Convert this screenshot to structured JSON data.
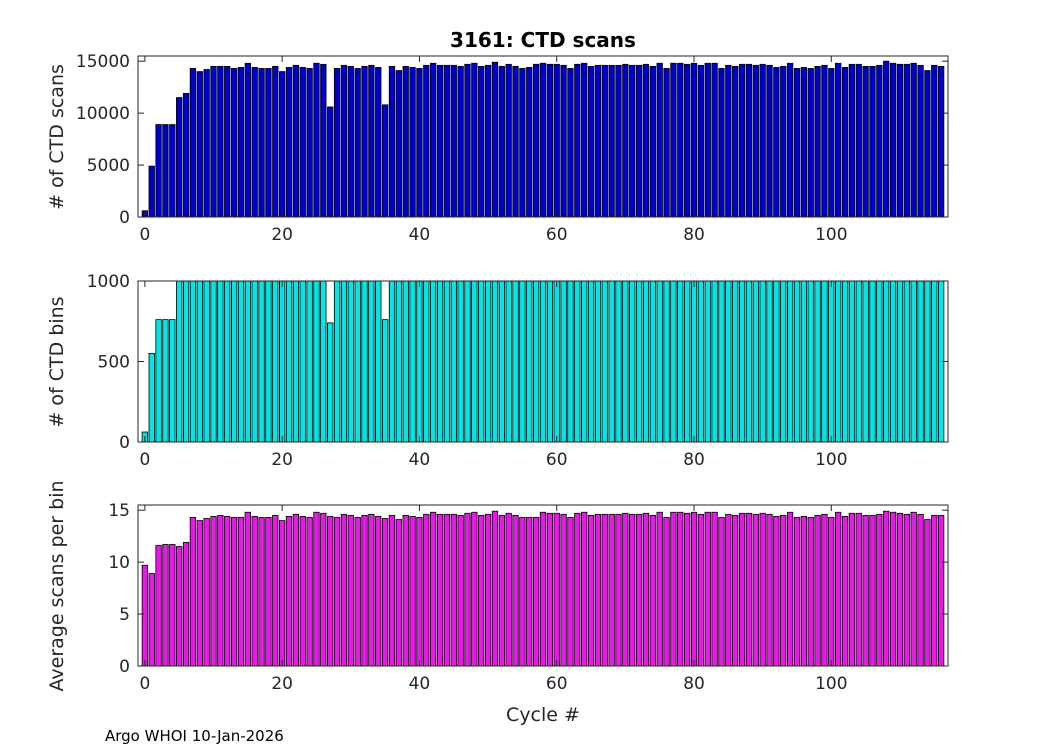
{
  "figure": {
    "footer": "Argo WHOI 10-Jan-2026"
  },
  "chart_data": [
    {
      "type": "bar",
      "title": "3161: CTD scans",
      "xlabel": "",
      "ylabel": "# of CTD scans",
      "xlim": [
        -1,
        117
      ],
      "ylim": [
        0,
        15500
      ],
      "xticks": [
        0,
        20,
        40,
        60,
        80,
        100
      ],
      "yticks": [
        0,
        5000,
        10000,
        15000
      ],
      "bar_color": "#0000cc",
      "x": [
        0,
        1,
        2,
        3,
        4,
        5,
        6,
        7,
        8,
        9,
        10,
        11,
        12,
        13,
        14,
        15,
        16,
        17,
        18,
        19,
        20,
        21,
        22,
        23,
        24,
        25,
        26,
        27,
        28,
        29,
        30,
        31,
        32,
        33,
        34,
        35,
        36,
        37,
        38,
        39,
        40,
        41,
        42,
        43,
        44,
        45,
        46,
        47,
        48,
        49,
        50,
        51,
        52,
        53,
        54,
        55,
        56,
        57,
        58,
        59,
        60,
        61,
        62,
        63,
        64,
        65,
        66,
        67,
        68,
        69,
        70,
        71,
        72,
        73,
        74,
        75,
        76,
        77,
        78,
        79,
        80,
        81,
        82,
        83,
        84,
        85,
        86,
        87,
        88,
        89,
        90,
        91,
        92,
        93,
        94,
        95,
        96,
        97,
        98,
        99,
        100,
        101,
        102,
        103,
        104,
        105,
        106,
        107,
        108,
        109,
        110,
        111,
        112,
        113,
        114,
        115,
        116
      ],
      "values": [
        600,
        4900,
        8900,
        8900,
        8900,
        11500,
        11900,
        14300,
        14000,
        14200,
        14500,
        14500,
        14500,
        14300,
        14400,
        14800,
        14400,
        14300,
        14300,
        14500,
        14000,
        14400,
        14600,
        14400,
        14300,
        14800,
        14700,
        10600,
        14300,
        14600,
        14500,
        14300,
        14500,
        14600,
        14400,
        10800,
        14500,
        14100,
        14500,
        14400,
        14300,
        14600,
        14800,
        14600,
        14600,
        14600,
        14500,
        14700,
        14800,
        14500,
        14600,
        14900,
        14500,
        14700,
        14500,
        14300,
        14400,
        14700,
        14800,
        14700,
        14700,
        14600,
        14300,
        14700,
        14800,
        14500,
        14600,
        14600,
        14600,
        14600,
        14700,
        14600,
        14600,
        14700,
        14500,
        14800,
        14300,
        14800,
        14800,
        14700,
        14800,
        14600,
        14800,
        14800,
        14300,
        14600,
        14500,
        14700,
        14700,
        14600,
        14700,
        14600,
        14400,
        14500,
        14800,
        14300,
        14400,
        14300,
        14500,
        14600,
        14300,
        14800,
        14400,
        14700,
        14700,
        14500,
        14500,
        14600,
        15000,
        14800,
        14700,
        14700,
        14800,
        14600,
        14100,
        14600,
        14500
      ]
    },
    {
      "type": "bar",
      "title": "",
      "xlabel": "",
      "ylabel": "# of CTD bins",
      "xlim": [
        -1,
        117
      ],
      "ylim": [
        0,
        1000
      ],
      "xticks": [
        0,
        20,
        40,
        60,
        80,
        100
      ],
      "yticks": [
        0,
        500,
        1000
      ],
      "bar_color": "#00e5e5",
      "x": [
        0,
        1,
        2,
        3,
        4,
        5,
        6,
        7,
        8,
        9,
        10,
        11,
        12,
        13,
        14,
        15,
        16,
        17,
        18,
        19,
        20,
        21,
        22,
        23,
        24,
        25,
        26,
        27,
        28,
        29,
        30,
        31,
        32,
        33,
        34,
        35,
        36,
        37,
        38,
        39,
        40,
        41,
        42,
        43,
        44,
        45,
        46,
        47,
        48,
        49,
        50,
        51,
        52,
        53,
        54,
        55,
        56,
        57,
        58,
        59,
        60,
        61,
        62,
        63,
        64,
        65,
        66,
        67,
        68,
        69,
        70,
        71,
        72,
        73,
        74,
        75,
        76,
        77,
        78,
        79,
        80,
        81,
        82,
        83,
        84,
        85,
        86,
        87,
        88,
        89,
        90,
        91,
        92,
        93,
        94,
        95,
        96,
        97,
        98,
        99,
        100,
        101,
        102,
        103,
        104,
        105,
        106,
        107,
        108,
        109,
        110,
        111,
        112,
        113,
        114,
        115,
        116
      ],
      "values": [
        62,
        550,
        760,
        760,
        760,
        1000,
        1000,
        1000,
        1000,
        1000,
        1000,
        1000,
        1000,
        1000,
        1000,
        1000,
        1000,
        1000,
        1000,
        1000,
        1000,
        1000,
        1000,
        1000,
        1000,
        1000,
        1000,
        740,
        1000,
        1000,
        1000,
        1000,
        1000,
        1000,
        1000,
        760,
        1000,
        1000,
        1000,
        1000,
        1000,
        1000,
        1000,
        1000,
        1000,
        1000,
        1000,
        1000,
        1000,
        1000,
        1000,
        1000,
        1000,
        1000,
        1000,
        1000,
        1000,
        1000,
        1000,
        1000,
        1000,
        1000,
        1000,
        1000,
        1000,
        1000,
        1000,
        1000,
        1000,
        1000,
        1000,
        1000,
        1000,
        1000,
        1000,
        1000,
        1000,
        1000,
        1000,
        1000,
        1000,
        1000,
        1000,
        1000,
        1000,
        1000,
        1000,
        1000,
        1000,
        1000,
        1000,
        1000,
        1000,
        1000,
        1000,
        1000,
        1000,
        1000,
        1000,
        1000,
        1000,
        1000,
        1000,
        1000,
        1000,
        1000,
        1000,
        1000,
        1000,
        1000,
        1000,
        1000,
        1000,
        1000,
        1000,
        1000,
        1000
      ]
    },
    {
      "type": "bar",
      "title": "",
      "xlabel": "Cycle #",
      "ylabel": "Average scans per bin",
      "xlim": [
        -1,
        117
      ],
      "ylim": [
        0,
        15.5
      ],
      "xticks": [
        0,
        20,
        40,
        60,
        80,
        100
      ],
      "yticks": [
        0,
        5,
        10,
        15
      ],
      "bar_color": "#e619e6",
      "x": [
        0,
        1,
        2,
        3,
        4,
        5,
        6,
        7,
        8,
        9,
        10,
        11,
        12,
        13,
        14,
        15,
        16,
        17,
        18,
        19,
        20,
        21,
        22,
        23,
        24,
        25,
        26,
        27,
        28,
        29,
        30,
        31,
        32,
        33,
        34,
        35,
        36,
        37,
        38,
        39,
        40,
        41,
        42,
        43,
        44,
        45,
        46,
        47,
        48,
        49,
        50,
        51,
        52,
        53,
        54,
        55,
        56,
        57,
        58,
        59,
        60,
        61,
        62,
        63,
        64,
        65,
        66,
        67,
        68,
        69,
        70,
        71,
        72,
        73,
        74,
        75,
        76,
        77,
        78,
        79,
        80,
        81,
        82,
        83,
        84,
        85,
        86,
        87,
        88,
        89,
        90,
        91,
        92,
        93,
        94,
        95,
        96,
        97,
        98,
        99,
        100,
        101,
        102,
        103,
        104,
        105,
        106,
        107,
        108,
        109,
        110,
        111,
        112,
        113,
        114,
        115,
        116
      ],
      "values": [
        9.7,
        8.9,
        11.6,
        11.7,
        11.7,
        11.5,
        11.9,
        14.3,
        14.0,
        14.2,
        14.4,
        14.5,
        14.4,
        14.3,
        14.3,
        14.8,
        14.4,
        14.3,
        14.3,
        14.5,
        14.0,
        14.4,
        14.6,
        14.4,
        14.3,
        14.8,
        14.7,
        14.4,
        14.3,
        14.6,
        14.5,
        14.3,
        14.5,
        14.6,
        14.4,
        14.2,
        14.5,
        14.1,
        14.5,
        14.4,
        14.3,
        14.6,
        14.8,
        14.6,
        14.6,
        14.6,
        14.5,
        14.7,
        14.8,
        14.5,
        14.6,
        14.9,
        14.5,
        14.7,
        14.5,
        14.3,
        14.3,
        14.3,
        14.8,
        14.7,
        14.7,
        14.6,
        14.3,
        14.7,
        14.8,
        14.5,
        14.6,
        14.6,
        14.6,
        14.6,
        14.7,
        14.6,
        14.6,
        14.7,
        14.5,
        14.8,
        14.3,
        14.8,
        14.8,
        14.7,
        14.8,
        14.6,
        14.8,
        14.8,
        14.3,
        14.6,
        14.5,
        14.7,
        14.7,
        14.6,
        14.7,
        14.6,
        14.4,
        14.5,
        14.8,
        14.3,
        14.4,
        14.3,
        14.5,
        14.6,
        14.3,
        14.8,
        14.4,
        14.7,
        14.7,
        14.5,
        14.5,
        14.6,
        14.9,
        14.8,
        14.7,
        14.6,
        14.8,
        14.6,
        14.1,
        14.5,
        14.5
      ]
    }
  ]
}
